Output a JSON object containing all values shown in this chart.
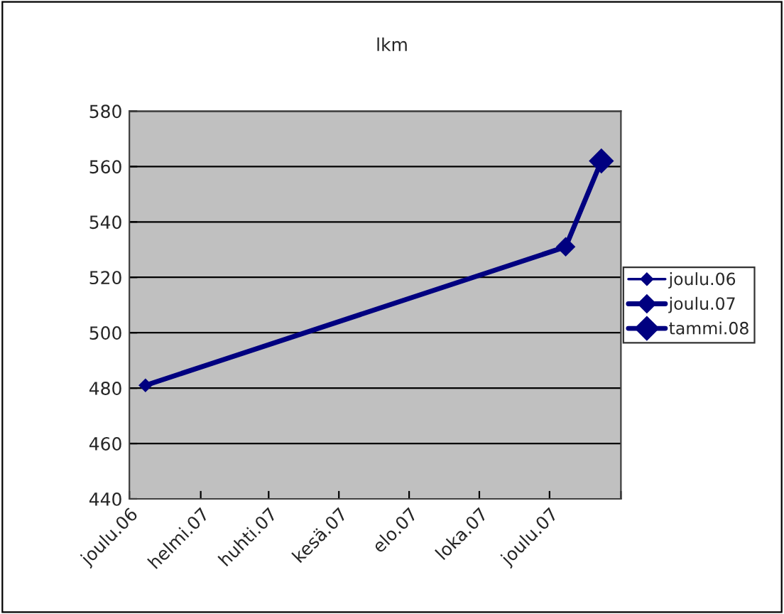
{
  "chart_data": {
    "type": "line",
    "title": "lkm",
    "xlim": [
      "2006-12-01",
      "2008-02-01"
    ],
    "xticks": [
      {
        "value": "2006-12-01",
        "label": "joulu.06"
      },
      {
        "value": "2007-02-01",
        "label": "helmi.07"
      },
      {
        "value": "2007-04-01",
        "label": "huhti.07"
      },
      {
        "value": "2007-06-01",
        "label": "kesä.07"
      },
      {
        "value": "2007-08-01",
        "label": "elo.07"
      },
      {
        "value": "2007-10-01",
        "label": "loka.07"
      },
      {
        "value": "2007-12-01",
        "label": "joulu.07"
      },
      {
        "value": "2008-02-01",
        "label": null
      }
    ],
    "ylim": [
      440,
      580
    ],
    "yticks": [
      440,
      460,
      480,
      500,
      520,
      540,
      560,
      580
    ],
    "grid": "y",
    "legend": "right",
    "line_style": "solid",
    "series": [
      {
        "color": "#000080",
        "marker": "none",
        "x": [
          "2006-12-15",
          "2007-12-15",
          "2008-01-15"
        ],
        "values": [
          481,
          531,
          562
        ]
      },
      {
        "name": "joulu.06",
        "color": "#000080",
        "marker": "diamond",
        "x": [
          "2006-12-15"
        ],
        "values": [
          481
        ]
      },
      {
        "name": "joulu.07",
        "color": "#000080",
        "marker": "diamond",
        "x": [
          "2007-12-15"
        ],
        "values": [
          531
        ]
      },
      {
        "name": "tammi.08",
        "color": "#000080",
        "marker": "diamond",
        "x": [
          "2008-01-15"
        ],
        "values": [
          562
        ]
      }
    ]
  }
}
